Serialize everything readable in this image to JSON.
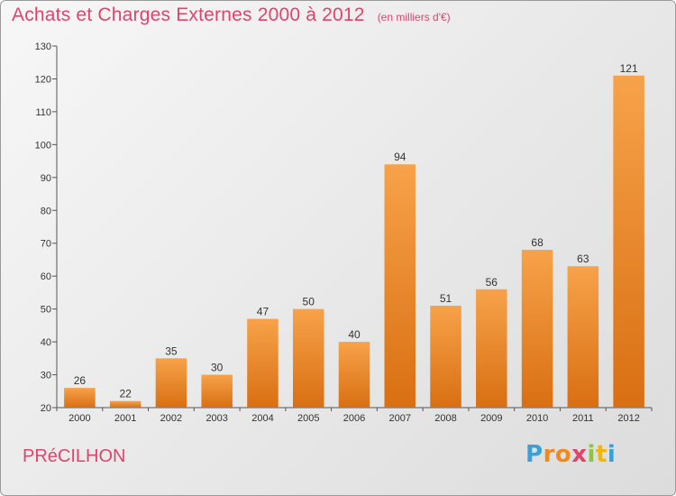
{
  "header": {
    "title": "Achats et Charges Externes 2000 à 2012",
    "subtitle": "(en milliers d'€)"
  },
  "footer": {
    "commune": "PRéCILHON",
    "brand_letters": [
      "P",
      "r",
      "o",
      "x",
      "i",
      "t",
      "i"
    ],
    "brand_colors": [
      "#3aa0d8",
      "#f08a1c",
      "#f08a1c",
      "#e0436b",
      "#8cc63f",
      "#f2b705",
      "#3aa0d8"
    ]
  },
  "colors": {
    "bar_light": "#f7a24a",
    "bar_dark": "#d96f12",
    "accent_text": "#e0436b"
  },
  "chart_data": {
    "type": "bar",
    "title": "Achats et Charges Externes 2000 à 2012",
    "subtitle": "(en milliers d'€)",
    "categories": [
      "2000",
      "2001",
      "2002",
      "2003",
      "2004",
      "2005",
      "2006",
      "2007",
      "2008",
      "2009",
      "2010",
      "2011",
      "2012"
    ],
    "values": [
      26,
      22,
      35,
      30,
      47,
      50,
      40,
      94,
      51,
      56,
      68,
      63,
      121
    ],
    "ylim": [
      20,
      130
    ],
    "yticks": [
      20,
      30,
      40,
      50,
      60,
      70,
      80,
      90,
      100,
      110,
      120,
      130
    ],
    "grid": false,
    "legend": "none"
  }
}
